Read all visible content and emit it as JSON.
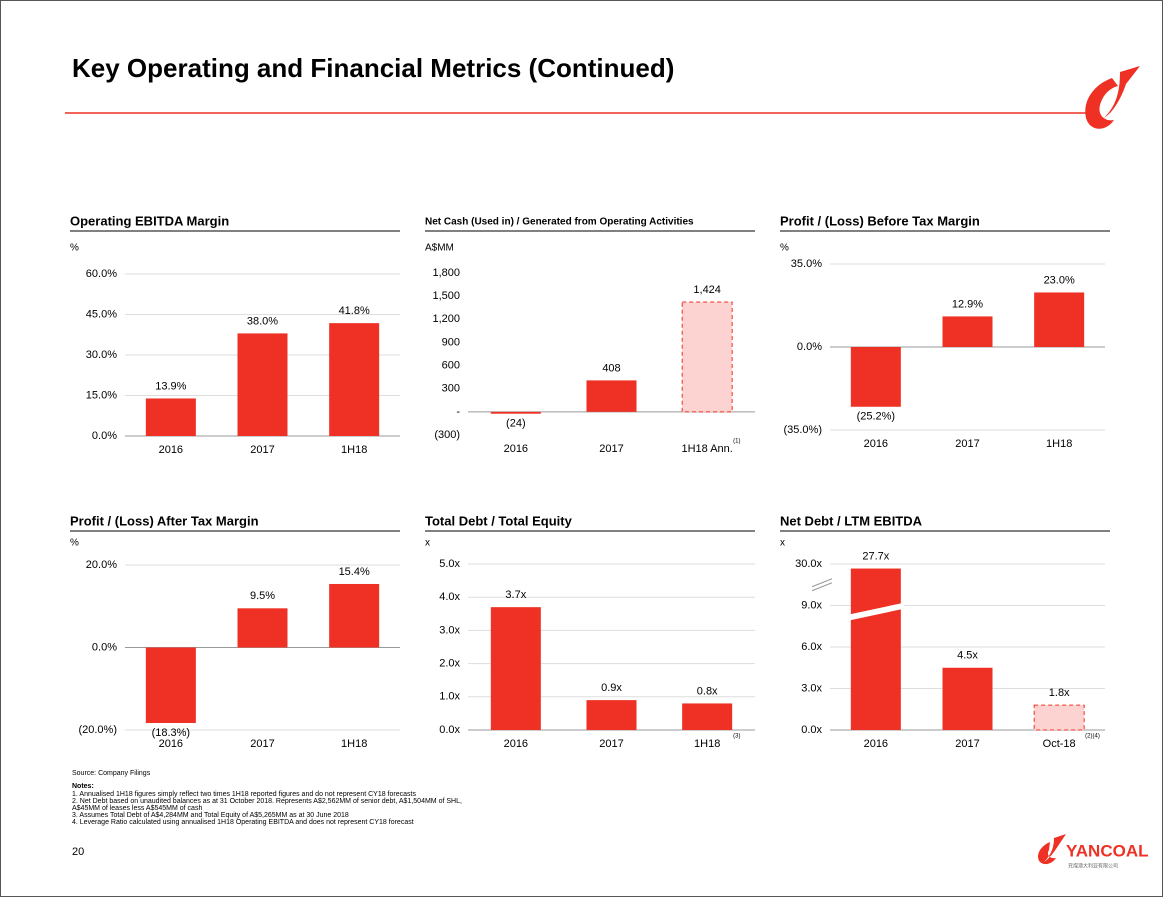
{
  "title": "Key Operating and Financial Metrics (Continued)",
  "source": "Source: Company Filings",
  "notes_heading": "Notes:",
  "notes": [
    "1.  Annualised 1H18 figures simply reflect two times 1H18 reported figures and do not represent CY18 forecasts",
    "2.  Net Debt based on unaudited balances as at 31 October 2018. Represents A$2,562MM of senior debt, A$1,504MM of SHL,",
    "     A$45MM of leases less A$545MM of cash",
    "3.  Assumes Total Debt of A$4,284MM  and Total Equity of A$5,265MM as at 30 June 2018",
    "4.  Leverage Ratio calculated using annualised 1H18 Operating EBITDA and does not represent CY18 forecast"
  ],
  "page_number": "20",
  "logo": {
    "name": "YANCOAL",
    "subtitle": "兖煤澳大利亚有限公司"
  },
  "chart_data": [
    {
      "type": "bar",
      "title": "Operating EBITDA Margin",
      "unit": "%",
      "categories": [
        "2016",
        "2017",
        "1H18"
      ],
      "values": [
        13.9,
        38.0,
        41.8
      ],
      "value_labels": [
        "13.9%",
        "38.0%",
        "41.8%"
      ],
      "colors": [
        "#ee3124",
        "#ee3124",
        "#ee3124"
      ],
      "dashed": [
        false,
        false,
        false
      ],
      "ylim": [
        0,
        60
      ],
      "yticks": [
        {
          "value": 0,
          "label": "0.0%"
        },
        {
          "value": 15,
          "label": "15.0%"
        },
        {
          "value": 30,
          "label": "30.0%"
        },
        {
          "value": 45,
          "label": "45.0%"
        },
        {
          "value": 60,
          "label": "60.0%"
        }
      ],
      "grid": true
    },
    {
      "type": "bar",
      "title": "Net Cash (Used in) / Generated from Operating Activities",
      "unit": "A$MM",
      "categories": [
        "2016",
        "2017",
        "1H18 Ann."
      ],
      "category_notes": [
        null,
        null,
        "(1)"
      ],
      "values": [
        -24,
        408,
        1424
      ],
      "value_labels": [
        "(24)",
        "408",
        "1,424"
      ],
      "colors": [
        "#ee3124",
        "#ee3124",
        "#fcd3d0"
      ],
      "dashed": [
        false,
        false,
        true
      ],
      "ylim": [
        -300,
        1800
      ],
      "yticks": [
        {
          "value": -300,
          "label": "(300)"
        },
        {
          "value": 0,
          "label": "-"
        },
        300,
        600,
        900,
        {
          "value": 1200,
          "label": "1,200"
        },
        {
          "value": 1500,
          "label": "1,500"
        },
        {
          "value": 1800,
          "label": "1,800"
        }
      ],
      "grid": false
    },
    {
      "type": "bar",
      "title": "Profit / (Loss) Before Tax Margin",
      "unit": "%",
      "categories": [
        "2016",
        "2017",
        "1H18"
      ],
      "values": [
        -25.2,
        12.9,
        23.0
      ],
      "value_labels": [
        "(25.2%)",
        "12.9%",
        "23.0%"
      ],
      "colors": [
        "#ee3124",
        "#ee3124",
        "#ee3124"
      ],
      "dashed": [
        false,
        false,
        false
      ],
      "ylim": [
        -35,
        35
      ],
      "yticks": [
        {
          "value": -35,
          "label": "(35.0%)"
        },
        {
          "value": 0,
          "label": "0.0%"
        },
        {
          "value": 35,
          "label": "35.0%"
        }
      ],
      "grid": true
    },
    {
      "type": "bar",
      "title": "Profit / (Loss) After Tax Margin",
      "unit": "%",
      "categories": [
        "2016",
        "2017",
        "1H18"
      ],
      "values": [
        -18.3,
        9.5,
        15.4
      ],
      "value_labels": [
        "(18.3%)",
        "9.5%",
        "15.4%"
      ],
      "colors": [
        "#ee3124",
        "#ee3124",
        "#ee3124"
      ],
      "dashed": [
        false,
        false,
        false
      ],
      "ylim": [
        -20,
        20
      ],
      "yticks": [
        {
          "value": -20,
          "label": "(20.0%)"
        },
        {
          "value": 0,
          "label": "0.0%"
        },
        {
          "value": 20,
          "label": "20.0%"
        }
      ],
      "grid": true
    },
    {
      "type": "bar",
      "title": "Total Debt / Total Equity",
      "unit": "x",
      "categories": [
        "2016",
        "2017",
        "1H18"
      ],
      "category_notes": [
        null,
        null,
        "(3)"
      ],
      "values": [
        3.7,
        0.9,
        0.8
      ],
      "value_labels": [
        "3.7x",
        "0.9x",
        "0.8x"
      ],
      "colors": [
        "#ee3124",
        "#ee3124",
        "#ee3124"
      ],
      "dashed": [
        false,
        false,
        false
      ],
      "ylim": [
        0,
        5
      ],
      "yticks": [
        {
          "value": 0,
          "label": "0.0x"
        },
        {
          "value": 1,
          "label": "1.0x"
        },
        {
          "value": 2,
          "label": "2.0x"
        },
        {
          "value": 3,
          "label": "3.0x"
        },
        {
          "value": 4,
          "label": "4.0x"
        },
        {
          "value": 5,
          "label": "5.0x"
        }
      ],
      "grid": true
    },
    {
      "type": "bar",
      "title": "Net Debt / LTM EBITDA",
      "unit": "x",
      "categories": [
        "2016",
        "2017",
        "Oct-18"
      ],
      "category_notes": [
        null,
        null,
        "(2)(4)"
      ],
      "values": [
        27.7,
        4.5,
        1.8
      ],
      "value_labels": [
        "27.7x",
        "4.5x",
        "1.8x"
      ],
      "colors": [
        "#ee3124",
        "#ee3124",
        "#fcd3d0"
      ],
      "dashed": [
        false,
        false,
        true
      ],
      "ylim": [
        0,
        30
      ],
      "axis_break": true,
      "yticks": [
        {
          "value": 0,
          "label": "0.0x"
        },
        {
          "value": 3,
          "label": "3.0x"
        },
        {
          "value": 6,
          "label": "6.0x"
        },
        {
          "value": 9,
          "label": "9.0x"
        },
        {
          "value": 30,
          "label": "30.0x"
        }
      ],
      "grid": true
    }
  ]
}
